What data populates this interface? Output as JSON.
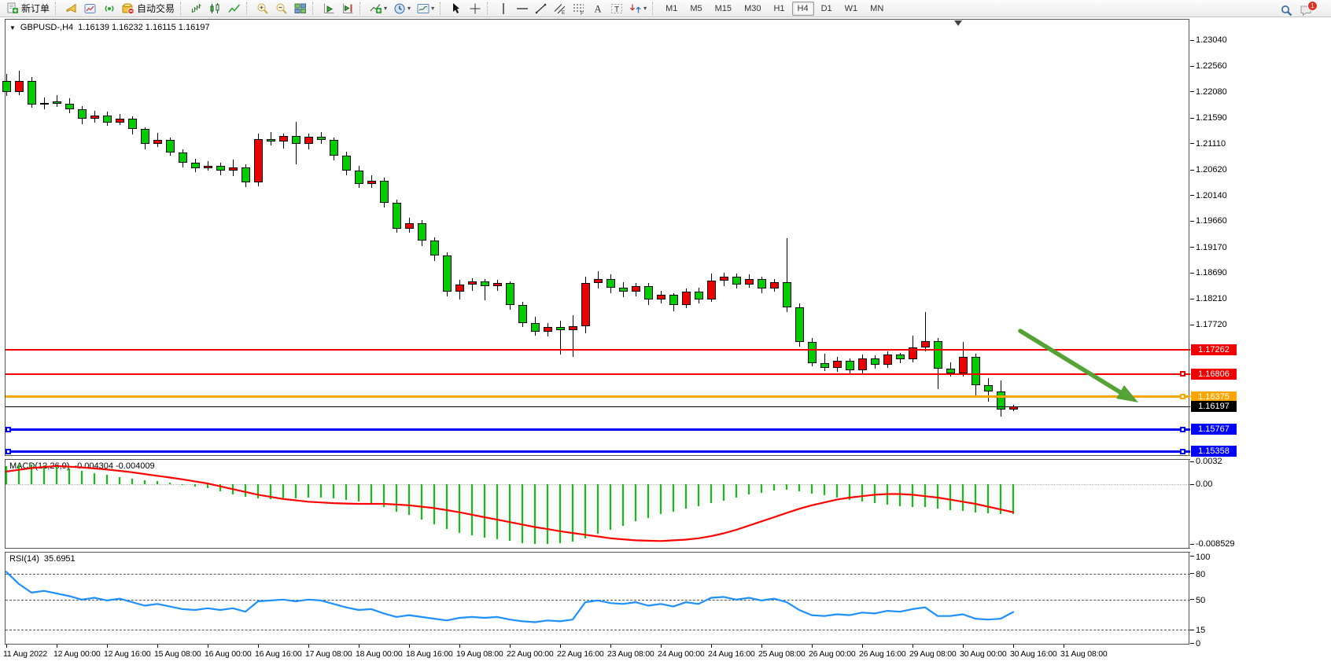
{
  "toolbar": {
    "groups": [
      {
        "buttons": [
          {
            "name": "new-order-button",
            "icon": "new-order",
            "label": "新订单"
          }
        ]
      },
      {
        "buttons": [
          {
            "name": "sound-alert-button",
            "icon": "horn"
          },
          {
            "name": "publish-chart-button",
            "icon": "chart-window"
          },
          {
            "name": "signals-button",
            "icon": "signal-waves"
          },
          {
            "name": "autotrading-button",
            "icon": "autotrading",
            "label": "自动交易"
          }
        ]
      },
      {
        "buttons": [
          {
            "name": "bar-chart-button",
            "icon": "bar-chart"
          },
          {
            "name": "candlestick-chart-button",
            "icon": "candles"
          },
          {
            "name": "line-chart-button",
            "icon": "line-chart"
          }
        ]
      },
      {
        "buttons": [
          {
            "name": "zoom-in-button",
            "icon": "zoom-in"
          },
          {
            "name": "zoom-out-button",
            "icon": "zoom-out"
          },
          {
            "name": "tile-windows-button",
            "icon": "tile"
          }
        ]
      },
      {
        "buttons": [
          {
            "name": "auto-scroll-button",
            "icon": "auto-scroll"
          },
          {
            "name": "chart-shift-button",
            "icon": "chart-shift"
          }
        ]
      },
      {
        "buttons": [
          {
            "name": "indicators-button",
            "icon": "indicator-add",
            "dropdown": true
          },
          {
            "name": "periods-button",
            "icon": "clock",
            "dropdown": true
          },
          {
            "name": "templates-button",
            "icon": "template",
            "dropdown": true
          }
        ]
      },
      {
        "buttons": [
          {
            "name": "cursor-button",
            "icon": "cursor"
          },
          {
            "name": "crosshair-button",
            "icon": "crosshair"
          }
        ]
      },
      {
        "buttons": [
          {
            "name": "vertical-line-button",
            "icon": "vline"
          },
          {
            "name": "horizontal-line-button",
            "icon": "hline"
          },
          {
            "name": "trendline-button",
            "icon": "trendline"
          },
          {
            "name": "equidistant-channel-button",
            "icon": "channel"
          },
          {
            "name": "fibonacci-button",
            "icon": "fibo"
          },
          {
            "name": "text-button",
            "icon": "text-a"
          },
          {
            "name": "text-label-button",
            "icon": "text-label"
          },
          {
            "name": "arrows-button",
            "icon": "shapes",
            "dropdown": true
          }
        ]
      }
    ],
    "timeframes": {
      "items": [
        "M1",
        "M5",
        "M15",
        "M30",
        "H1",
        "H4",
        "D1",
        "W1",
        "MN"
      ],
      "active": "H4"
    },
    "right": [
      {
        "name": "search-button",
        "icon": "search"
      },
      {
        "name": "chat-button",
        "icon": "chat",
        "badge": "1"
      }
    ]
  },
  "chart": {
    "title": {
      "collapse_triangle": "▼",
      "symbol": "GBPUSD-,H4",
      "ohlc": "1.16139 1.16232 1.16115 1.16197"
    },
    "price_axis": {
      "ticks": [
        "1.23040",
        "1.22560",
        "1.22080",
        "1.21590",
        "1.21110",
        "1.20620",
        "1.20140",
        "1.19660",
        "1.19170",
        "1.18690",
        "1.18210",
        "1.17720"
      ]
    },
    "time_axis": {
      "labels": [
        "11 Aug 2022",
        "12 Aug 00:00",
        "12 Aug 16:00",
        "15 Aug 08:00",
        "16 Aug 00:00",
        "16 Aug 16:00",
        "17 Aug 08:00",
        "18 Aug 00:00",
        "18 Aug 16:00",
        "19 Aug 08:00",
        "22 Aug 00:00",
        "22 Aug 16:00",
        "23 Aug 08:00",
        "24 Aug 00:00",
        "24 Aug 16:00",
        "25 Aug 08:00",
        "26 Aug 00:00",
        "26 Aug 16:00",
        "29 Aug 08:00",
        "30 Aug 00:00",
        "30 Aug 16:00",
        "31 Aug 08:00"
      ]
    },
    "levels": [
      {
        "price": 1.17262,
        "label": "1.17262",
        "color": "#F00000",
        "thickness": 2,
        "handle_left": false,
        "handle_right": false
      },
      {
        "price": 1.16806,
        "label": "1.16806",
        "color": "#F00000",
        "thickness": 2,
        "handle_left": false,
        "handle_right": true
      },
      {
        "price": 1.16375,
        "label": "1.16375",
        "color": "#FFA500",
        "thickness": 3,
        "handle_left": false,
        "handle_right": true
      },
      {
        "price": 1.16197,
        "label": "1.16197",
        "color": "#000000",
        "thickness": 1,
        "handle_left": false,
        "handle_right": false
      },
      {
        "price": 1.15767,
        "label": "1.15767",
        "color": "#0000FF",
        "thickness": 3,
        "handle_left": true,
        "handle_right": true
      },
      {
        "price": 1.15358,
        "label": "1.15358",
        "color": "#0000FF",
        "thickness": 3,
        "handle_left": true,
        "handle_right": true
      }
    ],
    "indicators": {
      "macd": {
        "label": "MACD(12,26,9)",
        "values": "-0.004304 -0.004009",
        "axis_labels": [
          "0.0032",
          "0.00",
          "-0.008529"
        ],
        "axis_values": [
          0.0032,
          0,
          -0.008529
        ]
      },
      "rsi": {
        "label": "RSI(14)",
        "value": "35.6951",
        "axis_labels": [
          "100",
          "80",
          "50",
          "15",
          "0"
        ],
        "axis_values": [
          100,
          80,
          50,
          15,
          0
        ],
        "level_lines": [
          80,
          50,
          15
        ]
      }
    }
  },
  "chart_data": {
    "type": "candlestick",
    "symbol": "GBPUSD",
    "timeframe": "H4",
    "open": 1.16139,
    "high": 1.16232,
    "low": 1.16115,
    "close": 1.16197,
    "ohlc": [
      [
        1.2228,
        1.2242,
        1.22,
        1.2207
      ],
      [
        1.2207,
        1.2248,
        1.2202,
        1.2228
      ],
      [
        1.2228,
        1.2236,
        1.2178,
        1.2184
      ],
      [
        1.2184,
        1.2198,
        1.2176,
        1.2187
      ],
      [
        1.219,
        1.2202,
        1.218,
        1.2186
      ],
      [
        1.2186,
        1.2196,
        1.2168,
        1.2175
      ],
      [
        1.2175,
        1.2181,
        1.2148,
        1.2158
      ],
      [
        1.2158,
        1.2172,
        1.215,
        1.2164
      ],
      [
        1.2164,
        1.2171,
        1.2145,
        1.215
      ],
      [
        1.215,
        1.2166,
        1.2146,
        1.2157
      ],
      [
        1.2157,
        1.2162,
        1.2128,
        1.2138
      ],
      [
        1.2138,
        1.2142,
        1.21,
        1.211
      ],
      [
        1.211,
        1.2131,
        1.2105,
        1.2118
      ],
      [
        1.2118,
        1.2122,
        1.2088,
        1.2095
      ],
      [
        1.2095,
        1.21,
        1.2066,
        1.2075
      ],
      [
        1.2075,
        1.2083,
        1.2058,
        1.2065
      ],
      [
        1.2065,
        1.2079,
        1.206,
        1.207
      ],
      [
        1.207,
        1.2076,
        1.2052,
        1.206
      ],
      [
        1.206,
        1.2081,
        1.205,
        1.2066
      ],
      [
        1.2066,
        1.2072,
        1.203,
        1.2038
      ],
      [
        1.2038,
        1.213,
        1.2032,
        1.212
      ],
      [
        1.212,
        1.2132,
        1.2108,
        1.2115
      ],
      [
        1.2115,
        1.213,
        1.2102,
        1.2126
      ],
      [
        1.2126,
        1.2152,
        1.2072,
        1.211
      ],
      [
        1.211,
        1.213,
        1.21,
        1.2124
      ],
      [
        1.2124,
        1.2132,
        1.211,
        1.2118
      ],
      [
        1.2118,
        1.2122,
        1.208,
        1.2088
      ],
      [
        1.2088,
        1.2096,
        1.2052,
        1.206
      ],
      [
        1.206,
        1.207,
        1.2028,
        1.2035
      ],
      [
        1.2035,
        1.2052,
        1.2028,
        1.2042
      ],
      [
        1.2042,
        1.2048,
        1.1992,
        1.2
      ],
      [
        1.2,
        1.2006,
        1.1944,
        1.1952
      ],
      [
        1.1952,
        1.1972,
        1.1944,
        1.1962
      ],
      [
        1.1962,
        1.1968,
        1.192,
        1.193
      ],
      [
        1.193,
        1.1936,
        1.1892,
        1.1902
      ],
      [
        1.1902,
        1.1908,
        1.1826,
        1.1835
      ],
      [
        1.1835,
        1.1856,
        1.182,
        1.1848
      ],
      [
        1.1848,
        1.186,
        1.1836,
        1.1853
      ],
      [
        1.1853,
        1.1858,
        1.1818,
        1.1845
      ],
      [
        1.1845,
        1.1856,
        1.1836,
        1.1851
      ],
      [
        1.1851,
        1.1854,
        1.18,
        1.181
      ],
      [
        1.181,
        1.1815,
        1.1768,
        1.1776
      ],
      [
        1.1776,
        1.1788,
        1.1752,
        1.176
      ],
      [
        1.176,
        1.1775,
        1.175,
        1.1768
      ],
      [
        1.1768,
        1.178,
        1.1716,
        1.1762
      ],
      [
        1.1762,
        1.179,
        1.1712,
        1.1769
      ],
      [
        1.1769,
        1.1862,
        1.1756,
        1.185
      ],
      [
        1.185,
        1.1872,
        1.184,
        1.1858
      ],
      [
        1.1858,
        1.1866,
        1.1832,
        1.1842
      ],
      [
        1.1842,
        1.1852,
        1.1824,
        1.1835
      ],
      [
        1.1835,
        1.185,
        1.1826,
        1.1845
      ],
      [
        1.1845,
        1.185,
        1.181,
        1.182
      ],
      [
        1.182,
        1.1836,
        1.1812,
        1.1828
      ],
      [
        1.1828,
        1.1832,
        1.1798,
        1.181
      ],
      [
        1.181,
        1.184,
        1.1804,
        1.1835
      ],
      [
        1.1835,
        1.1842,
        1.1812,
        1.182
      ],
      [
        1.182,
        1.1868,
        1.1815,
        1.1855
      ],
      [
        1.1855,
        1.187,
        1.1845,
        1.1862
      ],
      [
        1.1862,
        1.1868,
        1.184,
        1.1848
      ],
      [
        1.1848,
        1.1866,
        1.1842,
        1.1858
      ],
      [
        1.1858,
        1.1862,
        1.1832,
        1.184
      ],
      [
        1.184,
        1.1858,
        1.1834,
        1.1852
      ],
      [
        1.1852,
        1.1935,
        1.1796,
        1.1805
      ],
      [
        1.1805,
        1.1812,
        1.1732,
        1.174
      ],
      [
        1.174,
        1.1748,
        1.1694,
        1.17
      ],
      [
        1.17,
        1.1718,
        1.1686,
        1.1692
      ],
      [
        1.1692,
        1.1712,
        1.1684,
        1.1705
      ],
      [
        1.1705,
        1.171,
        1.168,
        1.1688
      ],
      [
        1.1688,
        1.1716,
        1.1682,
        1.171
      ],
      [
        1.171,
        1.1715,
        1.169,
        1.1698
      ],
      [
        1.1698,
        1.1722,
        1.1692,
        1.1716
      ],
      [
        1.1716,
        1.172,
        1.17,
        1.1708
      ],
      [
        1.1708,
        1.1752,
        1.1702,
        1.173
      ],
      [
        1.173,
        1.1796,
        1.1722,
        1.1742
      ],
      [
        1.1742,
        1.1748,
        1.1652,
        1.169
      ],
      [
        1.169,
        1.1702,
        1.1676,
        1.1682
      ],
      [
        1.1682,
        1.174,
        1.1676,
        1.1712
      ],
      [
        1.1712,
        1.1718,
        1.1638,
        1.166
      ],
      [
        1.166,
        1.1672,
        1.1628,
        1.1648
      ],
      [
        1.1648,
        1.1668,
        1.16,
        1.1614
      ],
      [
        1.16139,
        1.16232,
        1.16115,
        1.16197
      ]
    ],
    "macd_hist": [
      0.0026,
      0.0028,
      0.0028,
      0.0027,
      0.0025,
      0.0022,
      0.0019,
      0.0016,
      0.0013,
      0.001,
      0.0008,
      0.0006,
      0.0004,
      0.0002,
      0.0,
      -0.0003,
      -0.0006,
      -0.001,
      -0.0014,
      -0.0018,
      -0.002,
      -0.0021,
      -0.0021,
      -0.002,
      -0.0019,
      -0.0019,
      -0.002,
      -0.0022,
      -0.0025,
      -0.0028,
      -0.0033,
      -0.0039,
      -0.0044,
      -0.005,
      -0.0057,
      -0.0064,
      -0.0069,
      -0.0073,
      -0.0076,
      -0.0078,
      -0.0081,
      -0.0084,
      -0.0085,
      -0.0085,
      -0.0084,
      -0.0082,
      -0.0077,
      -0.0071,
      -0.0065,
      -0.0059,
      -0.0053,
      -0.0048,
      -0.0043,
      -0.0039,
      -0.0035,
      -0.0031,
      -0.0027,
      -0.0023,
      -0.0019,
      -0.0015,
      -0.0012,
      -0.0009,
      -0.0008,
      -0.001,
      -0.0013,
      -0.0016,
      -0.0019,
      -0.0022,
      -0.0025,
      -0.0027,
      -0.0029,
      -0.0031,
      -0.0032,
      -0.0033,
      -0.0035,
      -0.0037,
      -0.0038,
      -0.004,
      -0.0041,
      -0.0042,
      -0.0043
    ],
    "macd_signal": [
      0.0018,
      0.00205,
      0.0023,
      0.00245,
      0.0026,
      0.0025,
      0.0024,
      0.00225,
      0.0021,
      0.0019,
      0.0017,
      0.00145,
      0.0012,
      0.00095,
      0.0007,
      0.0004,
      0.0001,
      -0.0003,
      -0.0007,
      -0.0011,
      -0.0015,
      -0.0018,
      -0.0021,
      -0.0023,
      -0.0025,
      -0.0026,
      -0.0027,
      -0.00275,
      -0.0028,
      -0.0028,
      -0.0028,
      -0.0029,
      -0.003,
      -0.0032,
      -0.0034,
      -0.0037,
      -0.004,
      -0.00435,
      -0.0047,
      -0.00505,
      -0.0054,
      -0.00575,
      -0.0061,
      -0.0064,
      -0.0067,
      -0.00695,
      -0.0072,
      -0.00745,
      -0.0077,
      -0.00785,
      -0.008,
      -0.00805,
      -0.0081,
      -0.008,
      -0.0079,
      -0.0077,
      -0.0074,
      -0.007,
      -0.0065,
      -0.0059,
      -0.0053,
      -0.0047,
      -0.0041,
      -0.0035,
      -0.003,
      -0.0026,
      -0.0022,
      -0.0019,
      -0.0017,
      -0.0015,
      -0.0014,
      -0.0014,
      -0.0015,
      -0.0017,
      -0.0019,
      -0.0022,
      -0.0025,
      -0.0028,
      -0.0032,
      -0.0036,
      -0.004
    ],
    "rsi": [
      82,
      68,
      58,
      60,
      57,
      54,
      50,
      52,
      49,
      51,
      47,
      43,
      45,
      42,
      39,
      38,
      40,
      38,
      40,
      36,
      48,
      49,
      50,
      48,
      50,
      49,
      45,
      41,
      38,
      39,
      34,
      30,
      32,
      30,
      28,
      26,
      29,
      30,
      29,
      30,
      27,
      25,
      24,
      26,
      25,
      27,
      47,
      49,
      46,
      45,
      47,
      43,
      45,
      42,
      47,
      45,
      52,
      53,
      50,
      52,
      49,
      51,
      47,
      38,
      32,
      31,
      33,
      32,
      35,
      34,
      37,
      36,
      39,
      41,
      31,
      31,
      33,
      28,
      27,
      28,
      35.7
    ]
  },
  "colors": {
    "bull_candle": "#EE0000",
    "bear_candle": "#00CC00",
    "macd_hist": "#00CC00",
    "macd_signal": "#FF0000",
    "rsi_line": "#1E90FF",
    "arrow": "#55A335"
  }
}
